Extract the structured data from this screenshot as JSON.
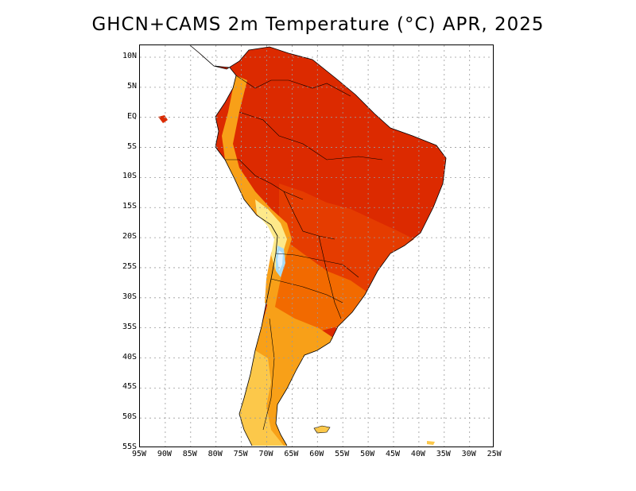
{
  "title": "GHCN+CAMS 2m Temperature (°C) APR, 2025",
  "map": {
    "region": "South America",
    "grid": true,
    "lat_labels": [
      "10N",
      "5N",
      "EQ",
      "5S",
      "10S",
      "15S",
      "20S",
      "25S",
      "30S",
      "35S",
      "40S",
      "45S",
      "50S",
      "55S"
    ],
    "lon_labels": [
      "95W",
      "90W",
      "85W",
      "80W",
      "75W",
      "70W",
      "65W",
      "60W",
      "55W",
      "50W",
      "45W",
      "40W",
      "35W",
      "30W",
      "25W"
    ],
    "colors": {
      "hottest": "#d82200",
      "hot": "#e33d00",
      "warm": "#f06a00",
      "mild": "#f89a10",
      "cool": "#fcc84a",
      "cold": "#fde98a",
      "freezing": "#e0f2ff",
      "ice": "#a8dcf5",
      "coastline": "#000000",
      "grid": "#9a9a9a"
    }
  }
}
